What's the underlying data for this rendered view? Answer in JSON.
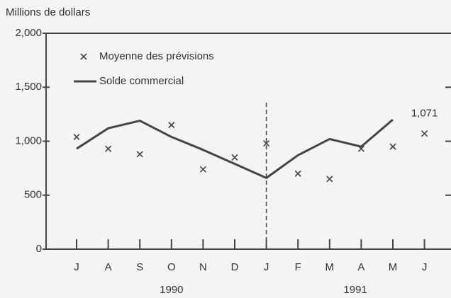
{
  "chart_data": {
    "type": "line",
    "ylabel": "Millions de dollars",
    "categories": [
      "J",
      "A",
      "S",
      "O",
      "N",
      "D",
      "J",
      "F",
      "M",
      "A",
      "M",
      "J"
    ],
    "years": [
      "1990",
      "1991"
    ],
    "series": [
      {
        "name": "Moyenne des prévisions",
        "type": "scatter",
        "color": "#444444",
        "values": [
          1040,
          930,
          880,
          1150,
          740,
          850,
          980,
          700,
          650,
          930,
          950,
          1071
        ],
        "value_labels": [
          null,
          null,
          null,
          null,
          null,
          null,
          null,
          null,
          null,
          null,
          null,
          "1,071"
        ]
      },
      {
        "name": "Solde commercial",
        "type": "line",
        "color": "#444444",
        "values": [
          930,
          1120,
          1190,
          1040,
          920,
          790,
          660,
          870,
          1020,
          950,
          1200,
          null
        ]
      }
    ],
    "ylim": [
      0,
      2000
    ],
    "yticks": [
      0,
      500,
      {
        "value": 1000,
        "label": "1,000"
      },
      {
        "value": 1500,
        "label": "1,500"
      },
      {
        "value": 2000,
        "label": "2,000"
      }
    ]
  }
}
